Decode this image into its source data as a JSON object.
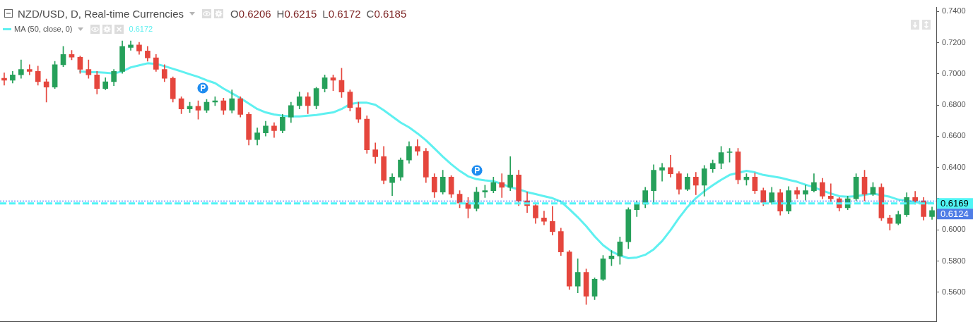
{
  "chart_data": {
    "type": "candlestick",
    "title": "NZD/USD, D, Real-time Currencies",
    "subtitle": "O0.6206 H0.6215 L0.6172 C0.6185",
    "categories": [
      null,
      null,
      null,
      null,
      null,
      null,
      null,
      null,
      null,
      null,
      null,
      null,
      null,
      null,
      null,
      null,
      null,
      null,
      null,
      null,
      null,
      null,
      null,
      null,
      null,
      null,
      null,
      null,
      null,
      null,
      null,
      null,
      null,
      null,
      null,
      null,
      null,
      null,
      null,
      null,
      null,
      null,
      null,
      null,
      null,
      null,
      null,
      null,
      null,
      null,
      null,
      null,
      null,
      null,
      null,
      null,
      null,
      null,
      null,
      null,
      null,
      null,
      null,
      null,
      null,
      null,
      null,
      null,
      null,
      null,
      null,
      null,
      null,
      null,
      null,
      null,
      null,
      null,
      null,
      null,
      null,
      null,
      null,
      null,
      null,
      null,
      null,
      null,
      null,
      null,
      null,
      null,
      null,
      null,
      null,
      null,
      null,
      null,
      null,
      null,
      null,
      null,
      null,
      null,
      null,
      null,
      null,
      null,
      null,
      null,
      null
    ],
    "ohlc": [
      [
        0.6972,
        0.7007,
        0.6928,
        0.6959
      ],
      [
        0.6959,
        0.7016,
        0.6941,
        0.6994
      ],
      [
        0.6994,
        0.709,
        0.6972,
        0.7029
      ],
      [
        0.7029,
        0.7059,
        0.6994,
        0.7016
      ],
      [
        0.7016,
        0.705,
        0.6928,
        0.695
      ],
      [
        0.695,
        0.6967,
        0.6819,
        0.6915
      ],
      [
        0.6915,
        0.7081,
        0.6906,
        0.7059
      ],
      [
        0.7059,
        0.7177,
        0.7046,
        0.7125
      ],
      [
        0.7125,
        0.7151,
        0.709,
        0.7107
      ],
      [
        0.7107,
        0.7116,
        0.7003,
        0.7029
      ],
      [
        0.7029,
        0.709,
        0.6972,
        0.6994
      ],
      [
        0.6994,
        0.7016,
        0.6871,
        0.6906
      ],
      [
        0.6906,
        0.6976,
        0.6898,
        0.695
      ],
      [
        0.695,
        0.7029,
        0.6924,
        0.7016
      ],
      [
        0.7016,
        0.7212,
        0.7003,
        0.7177
      ],
      [
        0.7169,
        0.7212,
        0.7151,
        0.7186
      ],
      [
        0.7186,
        0.7203,
        0.7125,
        0.7147
      ],
      [
        0.7147,
        0.7177,
        0.7081,
        0.7103
      ],
      [
        0.7103,
        0.7125,
        0.7016,
        0.7029
      ],
      [
        0.7029,
        0.7059,
        0.695,
        0.6972
      ],
      [
        0.6972,
        0.6981,
        0.6819,
        0.6841
      ],
      [
        0.6841,
        0.6854,
        0.6745,
        0.6775
      ],
      [
        0.6775,
        0.6819,
        0.6753,
        0.6793
      ],
      [
        0.6793,
        0.6828,
        0.671,
        0.6767
      ],
      [
        0.6767,
        0.6836,
        0.6753,
        0.6819
      ],
      [
        0.6819,
        0.6854,
        0.6797,
        0.6828
      ],
      [
        0.6828,
        0.6845,
        0.674,
        0.6767
      ],
      [
        0.6767,
        0.6898,
        0.6749,
        0.6841
      ],
      [
        0.6841,
        0.6854,
        0.6723,
        0.674
      ],
      [
        0.674,
        0.6753,
        0.6544,
        0.6579
      ],
      [
        0.6579,
        0.6653,
        0.6544,
        0.6622
      ],
      [
        0.6622,
        0.6697,
        0.6601,
        0.6666
      ],
      [
        0.6666,
        0.6688,
        0.6592,
        0.6636
      ],
      [
        0.6636,
        0.674,
        0.6622,
        0.6723
      ],
      [
        0.6723,
        0.6819,
        0.6688,
        0.6797
      ],
      [
        0.6797,
        0.6884,
        0.6775,
        0.6854
      ],
      [
        0.6854,
        0.688,
        0.6745,
        0.6797
      ],
      [
        0.6797,
        0.6915,
        0.6775,
        0.6906
      ],
      [
        0.6906,
        0.6994,
        0.6884,
        0.6976
      ],
      [
        0.6976,
        0.6994,
        0.6893,
        0.6959
      ],
      [
        0.6959,
        0.7037,
        0.6849,
        0.6884
      ],
      [
        0.6884,
        0.6898,
        0.6762,
        0.6784
      ],
      [
        0.6784,
        0.6819,
        0.6688,
        0.671
      ],
      [
        0.671,
        0.6732,
        0.6491,
        0.6513
      ],
      [
        0.6513,
        0.6557,
        0.6426,
        0.6469
      ],
      [
        0.6469,
        0.6535,
        0.6295,
        0.6317
      ],
      [
        0.6303,
        0.636,
        0.622,
        0.6338
      ],
      [
        0.6338,
        0.6461,
        0.6317,
        0.6448
      ],
      [
        0.6448,
        0.6566,
        0.6426,
        0.6535
      ],
      [
        0.6535,
        0.6579,
        0.6478,
        0.6504
      ],
      [
        0.6504,
        0.6522,
        0.6303,
        0.6338
      ],
      [
        0.6338,
        0.636,
        0.6207,
        0.6242
      ],
      [
        0.6242,
        0.6382,
        0.6229,
        0.6338
      ],
      [
        0.6338,
        0.6347,
        0.6207,
        0.6229
      ],
      [
        0.6229,
        0.6251,
        0.6142,
        0.6172
      ],
      [
        0.6172,
        0.6207,
        0.6076,
        0.6137
      ],
      [
        0.6137,
        0.6273,
        0.612,
        0.6242
      ],
      [
        0.6242,
        0.6286,
        0.6207,
        0.6251
      ],
      [
        0.6251,
        0.6338,
        0.6238,
        0.6303
      ],
      [
        0.6303,
        0.636,
        0.6207,
        0.6273
      ],
      [
        0.6273,
        0.6469,
        0.6251,
        0.6352
      ],
      [
        0.6352,
        0.6382,
        0.6155,
        0.6186
      ],
      [
        0.6186,
        0.6242,
        0.6111,
        0.6155
      ],
      [
        0.6155,
        0.6172,
        0.6041,
        0.6076
      ],
      [
        0.6076,
        0.612,
        0.6032,
        0.6054
      ],
      [
        0.6054,
        0.6151,
        0.5967,
        0.5989
      ],
      [
        0.5989,
        0.6011,
        0.5836,
        0.5858
      ],
      [
        0.5858,
        0.5867,
        0.5617,
        0.5639
      ],
      [
        0.5639,
        0.5814,
        0.5596,
        0.5727
      ],
      [
        0.5727,
        0.5749,
        0.5521,
        0.5574
      ],
      [
        0.5574,
        0.5692,
        0.5552,
        0.5683
      ],
      [
        0.5683,
        0.5836,
        0.5674,
        0.5814
      ],
      [
        0.5814,
        0.5867,
        0.577,
        0.5832
      ],
      [
        0.5832,
        0.5954,
        0.5779,
        0.5923
      ],
      [
        0.5923,
        0.6142,
        0.5879,
        0.6129
      ],
      [
        0.6129,
        0.6186,
        0.6085,
        0.6164
      ],
      [
        0.6164,
        0.6273,
        0.6142,
        0.6251
      ],
      [
        0.6251,
        0.6417,
        0.6164,
        0.6382
      ],
      [
        0.6382,
        0.6426,
        0.6312,
        0.64
      ],
      [
        0.64,
        0.6478,
        0.6338,
        0.636
      ],
      [
        0.636,
        0.6373,
        0.6229,
        0.626
      ],
      [
        0.626,
        0.636,
        0.6251,
        0.6338
      ],
      [
        0.6338,
        0.6369,
        0.6225,
        0.6286
      ],
      [
        0.6286,
        0.6413,
        0.6216,
        0.6391
      ],
      [
        0.6391,
        0.6448,
        0.6369,
        0.6426
      ],
      [
        0.6426,
        0.6535,
        0.6391,
        0.6496
      ],
      [
        0.6496,
        0.6522,
        0.6434,
        0.65
      ],
      [
        0.65,
        0.6522,
        0.6295,
        0.6321
      ],
      [
        0.6321,
        0.636,
        0.6286,
        0.6338
      ],
      [
        0.6338,
        0.6365,
        0.6233,
        0.6251
      ],
      [
        0.6251,
        0.6268,
        0.6155,
        0.6177
      ],
      [
        0.6177,
        0.6273,
        0.6164,
        0.6238
      ],
      [
        0.6238,
        0.626,
        0.6094,
        0.612
      ],
      [
        0.612,
        0.6277,
        0.6102,
        0.6251
      ],
      [
        0.6251,
        0.6273,
        0.6199,
        0.6229
      ],
      [
        0.6229,
        0.6286,
        0.619,
        0.6251
      ],
      [
        0.6251,
        0.636,
        0.6242,
        0.6303
      ],
      [
        0.6303,
        0.633,
        0.6199,
        0.6216
      ],
      [
        0.6216,
        0.6295,
        0.6181,
        0.6199
      ],
      [
        0.6199,
        0.6207,
        0.612,
        0.6142
      ],
      [
        0.6142,
        0.6216,
        0.6129,
        0.6199
      ],
      [
        0.6199,
        0.636,
        0.6186,
        0.6338
      ],
      [
        0.6338,
        0.6382,
        0.6186,
        0.6229
      ],
      [
        0.6229,
        0.6303,
        0.622,
        0.6273
      ],
      [
        0.6273,
        0.6295,
        0.6059,
        0.6076
      ],
      [
        0.6076,
        0.6094,
        0.5998,
        0.6041
      ],
      [
        0.6041,
        0.612,
        0.6032,
        0.6098
      ],
      [
        0.6098,
        0.6238,
        0.6085,
        0.6207
      ],
      [
        0.6207,
        0.6247,
        0.6164,
        0.6186
      ],
      [
        0.6186,
        0.6207,
        0.6063,
        0.6085
      ],
      [
        0.6085,
        0.6146,
        0.6067,
        0.6124
      ]
    ],
    "colors": [
      "#e5463d",
      "#26a05a",
      "#26a05a",
      "#e5463d",
      "#e5463d",
      "#e5463d",
      "#26a05a",
      "#26a05a",
      "#e5463d",
      "#e5463d",
      "#e5463d",
      "#e5463d",
      "#26a05a",
      "#26a05a",
      "#26a05a",
      "#26a05a",
      "#e5463d",
      "#e5463d",
      "#e5463d",
      "#e5463d",
      "#e5463d",
      "#e5463d",
      "#26a05a",
      "#e5463d",
      "#26a05a",
      "#26a05a",
      "#e5463d",
      "#26a05a",
      "#e5463d",
      "#e5463d",
      "#26a05a",
      "#26a05a",
      "#e5463d",
      "#26a05a",
      "#26a05a",
      "#26a05a",
      "#e5463d",
      "#26a05a",
      "#26a05a",
      "#e5463d",
      "#e5463d",
      "#e5463d",
      "#e5463d",
      "#e5463d",
      "#e5463d",
      "#e5463d",
      "#26a05a",
      "#26a05a",
      "#26a05a",
      "#e5463d",
      "#e5463d",
      "#e5463d",
      "#26a05a",
      "#e5463d",
      "#e5463d",
      "#e5463d",
      "#26a05a",
      "#26a05a",
      "#26a05a",
      "#e5463d",
      "#26a05a",
      "#e5463d",
      "#e5463d",
      "#e5463d",
      "#e5463d",
      "#e5463d",
      "#e5463d",
      "#e5463d",
      "#26a05a",
      "#e5463d",
      "#26a05a",
      "#26a05a",
      "#26a05a",
      "#26a05a",
      "#26a05a",
      "#26a05a",
      "#26a05a",
      "#26a05a",
      "#26a05a",
      "#e5463d",
      "#e5463d",
      "#26a05a",
      "#e5463d",
      "#26a05a",
      "#26a05a",
      "#26a05a",
      "#26a05a",
      "#e5463d",
      "#26a05a",
      "#e5463d",
      "#e5463d",
      "#26a05a",
      "#e5463d",
      "#26a05a",
      "#e5463d",
      "#26a05a",
      "#26a05a",
      "#e5463d",
      "#e5463d",
      "#e5463d",
      "#26a05a",
      "#26a05a",
      "#e5463d",
      "#26a05a",
      "#e5463d",
      "#e5463d",
      "#26a05a",
      "#26a05a",
      "#e5463d",
      "#e5463d",
      "#26a05a"
    ],
    "series": [
      {
        "type": "line",
        "name": "MA (50, close, 0)",
        "color": "#5ff0f0",
        "values": [
          null,
          null,
          null,
          null,
          null,
          null,
          null,
          null,
          null,
          0.7016,
          0.7011,
          0.7011,
          0.7007,
          0.7003,
          0.7016,
          0.7042,
          0.7055,
          0.7068,
          0.7064,
          0.705,
          0.7033,
          0.7016,
          0.6998,
          0.6981,
          0.6959,
          0.6941,
          0.6906,
          0.6876,
          0.6845,
          0.681,
          0.6775,
          0.6753,
          0.674,
          0.6732,
          0.6727,
          0.6727,
          0.6732,
          0.6736,
          0.6745,
          0.6753,
          0.6775,
          0.6806,
          0.6815,
          0.6815,
          0.6802,
          0.6767,
          0.6727,
          0.6688,
          0.6657,
          0.6618,
          0.6574,
          0.6522,
          0.6469,
          0.6421,
          0.6378,
          0.6343,
          0.6325,
          0.6317,
          0.6312,
          0.6295,
          0.6273,
          0.626,
          0.6242,
          0.6229,
          0.6216,
          0.6203,
          0.6181,
          0.6133,
          0.6081,
          0.6024,
          0.5958,
          0.5902,
          0.5862,
          0.5836,
          0.5818,
          0.5823,
          0.584,
          0.5875,
          0.5928,
          0.5998,
          0.6076,
          0.6146,
          0.6203,
          0.6247,
          0.6286,
          0.6321,
          0.6352,
          null,
          0.6378,
          0.6369,
          0.6352,
          0.6343,
          0.6334,
          0.6321,
          0.6308,
          0.629,
          0.6273,
          0.6251,
          0.6233,
          0.6216,
          0.6212,
          0.6216,
          0.6225,
          0.6233,
          null,
          0.6212,
          0.6194,
          0.6186,
          0.6177,
          0.6172,
          0.6172
        ]
      }
    ],
    "ylim": [
      0.5412,
      0.7426
    ],
    "yticks": [
      {
        "value": 0.74,
        "label": "0.7400"
      },
      {
        "value": 0.72,
        "label": "0.7200"
      },
      {
        "value": 0.7,
        "label": "0.7000"
      },
      {
        "value": 0.68,
        "label": "0.6800"
      },
      {
        "value": 0.66,
        "label": "0.6600"
      },
      {
        "value": 0.64,
        "label": "0.6400"
      },
      {
        "value": 0.62,
        "label": null
      },
      {
        "value": 0.6,
        "label": "0.6000"
      },
      {
        "value": 0.58,
        "label": "0.5800"
      },
      {
        "value": 0.56,
        "label": "0.5600"
      }
    ],
    "tick_labels": "y",
    "legend": "top left",
    "ref_lines": [
      {
        "axis": "y",
        "value": 0.6185,
        "color": "#2962ff",
        "line_style": "dotted"
      },
      {
        "axis": "y",
        "value": 0.6169,
        "label": "0.6169",
        "color": "#4ff5f5",
        "line_style": "dashed"
      }
    ],
    "annotations": [
      "0.6172",
      "0.6124"
    ]
  }
}
